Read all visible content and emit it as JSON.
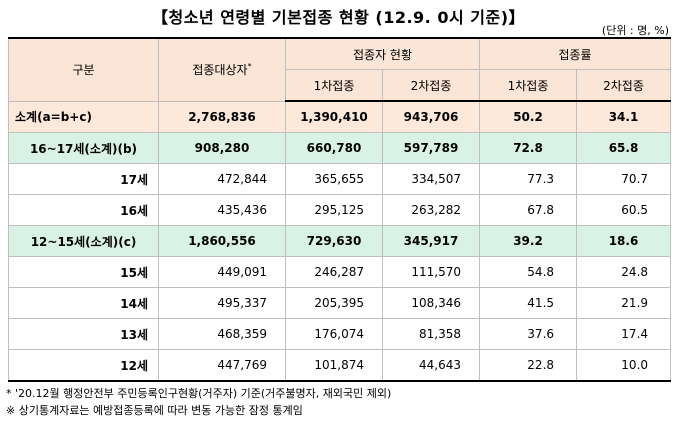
{
  "title": "【청소년 연령별 기본접종 현황 (12.9. 0시 기준)】",
  "unit": "(단위 : 명, %)",
  "headers": {
    "category": "구분",
    "target": "접종대상자",
    "target_mark": "*",
    "vaccinated": "접종자 현황",
    "rate": "접종률",
    "dose1": "1차접종",
    "dose2": "2차접종"
  },
  "rows": [
    {
      "label": "소계(a=b+c)",
      "target": "2,768,836",
      "d1": "1,390,410",
      "d2": "943,706",
      "r1": "50.2",
      "r2": "34.1"
    },
    {
      "label": "16~17세(소계)(b)",
      "target": "908,280",
      "d1": "660,780",
      "d2": "597,789",
      "r1": "72.8",
      "r2": "65.8"
    },
    {
      "label": "17세",
      "target": "472,844",
      "d1": "365,655",
      "d2": "334,507",
      "r1": "77.3",
      "r2": "70.7"
    },
    {
      "label": "16세",
      "target": "435,436",
      "d1": "295,125",
      "d2": "263,282",
      "r1": "67.8",
      "r2": "60.5"
    },
    {
      "label": "12~15세(소계)(c)",
      "target": "1,860,556",
      "d1": "729,630",
      "d2": "345,917",
      "r1": "39.2",
      "r2": "18.6"
    },
    {
      "label": "15세",
      "target": "449,091",
      "d1": "246,287",
      "d2": "111,570",
      "r1": "54.8",
      "r2": "24.8"
    },
    {
      "label": "14세",
      "target": "495,337",
      "d1": "205,395",
      "d2": "108,346",
      "r1": "41.5",
      "r2": "21.9"
    },
    {
      "label": "13세",
      "target": "468,359",
      "d1": "176,074",
      "d2": "81,358",
      "r1": "37.6",
      "r2": "17.4"
    },
    {
      "label": "12세",
      "target": "447,769",
      "d1": "101,874",
      "d2": "44,643",
      "r1": "22.8",
      "r2": "10.0"
    }
  ],
  "footnotes": [
    "* '20.12월 행정안전부 주민등록인구현황(거주자) 기준(거주불명자, 재외국민 제외)",
    "※ 상기통계자료는 예방접종등록에 따라 변동 가능한 잠정 통계임"
  ],
  "colors": {
    "header_bg": "#fbe5d6",
    "total_bg": "#fde9d9",
    "subtotal_bg": "#d9f2e6"
  }
}
